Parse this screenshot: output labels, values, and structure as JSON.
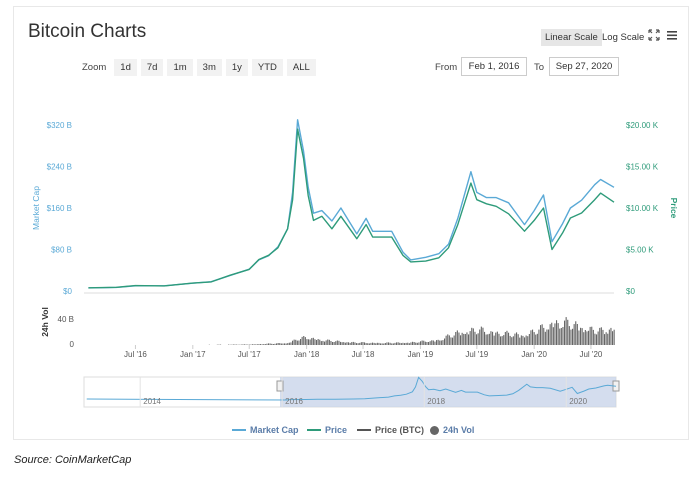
{
  "title": "Bitcoin Charts",
  "scale_buttons": {
    "linear": "Linear Scale",
    "log": "Log Scale"
  },
  "icons": {
    "fullscreen": "fullscreen-icon",
    "menu": "menu-icon"
  },
  "zoom": {
    "label": "Zoom",
    "options": [
      "1d",
      "7d",
      "1m",
      "3m",
      "1y",
      "YTD",
      "ALL"
    ]
  },
  "range": {
    "from_label": "From",
    "from": "Feb 1, 2016",
    "to_label": "To",
    "to": "Sep 27, 2020"
  },
  "source": "Source: CoinMarketCap",
  "colors": {
    "market_cap": "#5aa9d6",
    "price": "#2e9b7a",
    "price_btc": "#555555",
    "vol": "#666666",
    "navigator_fill": "#c9d5ea"
  },
  "chart_data": {
    "type": "line",
    "left_axis": {
      "label": "Market Cap",
      "ticks": [
        "$0",
        "$80 B",
        "$160 B",
        "$240 B",
        "$320 B"
      ],
      "values": [
        0,
        80,
        160,
        240,
        320
      ],
      "unit": "B USD"
    },
    "right_axis": {
      "label": "Price",
      "ticks": [
        "$0",
        "$5.00 K",
        "$10.00 K",
        "$15.00 K",
        "$20.00 K"
      ],
      "values": [
        0,
        5000,
        10000,
        15000,
        20000
      ]
    },
    "volume_axis": {
      "label": "24h Vol",
      "ticks": [
        "0",
        "40 B"
      ]
    },
    "x_ticks": [
      "Jul '16",
      "Jan '17",
      "Jul '17",
      "Jan '18",
      "Jul '18",
      "Jan '19",
      "Jul '19",
      "Jan '20",
      "Jul '20"
    ],
    "x_tick_dates": [
      "2016-07",
      "2017-01",
      "2017-07",
      "2018-01",
      "2018-07",
      "2019-01",
      "2019-07",
      "2020-01",
      "2020-07"
    ],
    "navigator_ticks": [
      "2014",
      "2016",
      "2018",
      "2020"
    ],
    "legend": [
      "Market Cap",
      "Price",
      "Price (BTC)",
      "24h Vol"
    ],
    "series": [
      {
        "name": "Market Cap",
        "unit": "B USD",
        "dates": [
          "2016-02",
          "2016-05",
          "2016-07",
          "2016-10",
          "2017-01",
          "2017-03",
          "2017-05",
          "2017-07",
          "2017-08",
          "2017-09",
          "2017-10",
          "2017-11",
          "2017-12-01",
          "2017-12-17",
          "2018-01-05",
          "2018-01-20",
          "2018-02-06",
          "2018-03-05",
          "2018-04-06",
          "2018-05-05",
          "2018-06-25",
          "2018-07-25",
          "2018-08-15",
          "2018-09-15",
          "2018-10-15",
          "2018-11-20",
          "2018-12-15",
          "2019-02-01",
          "2019-03-15",
          "2019-04-15",
          "2019-05-15",
          "2019-06-26",
          "2019-07-15",
          "2019-08-15",
          "2019-09-15",
          "2019-10-25",
          "2019-12-15",
          "2020-01-15",
          "2020-02-14",
          "2020-03-12",
          "2020-04-15",
          "2020-05-10",
          "2020-06-15",
          "2020-07-27",
          "2020-08-15",
          "2020-09-27"
        ],
        "values": [
          6,
          7,
          10,
          10,
          15,
          18,
          30,
          42,
          60,
          68,
          85,
          120,
          190,
          330,
          270,
          200,
          150,
          155,
          135,
          160,
          110,
          140,
          115,
          115,
          115,
          75,
          60,
          65,
          72,
          90,
          140,
          230,
          190,
          180,
          180,
          170,
          128,
          155,
          185,
          95,
          130,
          160,
          175,
          205,
          215,
          200
        ]
      },
      {
        "name": "Price",
        "unit": "USD",
        "dates": [
          "2016-02",
          "2016-05",
          "2016-07",
          "2016-10",
          "2017-01",
          "2017-03",
          "2017-05",
          "2017-07",
          "2017-08",
          "2017-09",
          "2017-10",
          "2017-11",
          "2017-12-01",
          "2017-12-17",
          "2018-01-05",
          "2018-01-20",
          "2018-02-06",
          "2018-03-05",
          "2018-04-06",
          "2018-05-05",
          "2018-06-25",
          "2018-07-25",
          "2018-08-15",
          "2018-09-15",
          "2018-10-15",
          "2018-11-20",
          "2018-12-15",
          "2019-02-01",
          "2019-03-15",
          "2019-04-15",
          "2019-05-15",
          "2019-06-26",
          "2019-07-15",
          "2019-08-15",
          "2019-09-15",
          "2019-10-25",
          "2019-12-15",
          "2020-01-15",
          "2020-02-14",
          "2020-03-12",
          "2020-04-15",
          "2020-05-10",
          "2020-06-15",
          "2020-07-27",
          "2020-08-15",
          "2020-09-27"
        ],
        "values": [
          380,
          450,
          650,
          620,
          950,
          1100,
          1900,
          2600,
          3800,
          4300,
          5200,
          7500,
          11000,
          19500,
          16000,
          11500,
          8500,
          9000,
          7500,
          9000,
          6300,
          8000,
          6500,
          6500,
          6500,
          4300,
          3500,
          3600,
          4000,
          5200,
          8000,
          13000,
          11000,
          10500,
          10200,
          9300,
          7200,
          8500,
          10000,
          5000,
          7000,
          8800,
          9400,
          11000,
          11800,
          10700
        ]
      },
      {
        "name": "24h Vol",
        "unit": "B USD",
        "dates": [
          "2016-02",
          "2016-07",
          "2017-01",
          "2017-07",
          "2017-11",
          "2017-12",
          "2018-01",
          "2018-03",
          "2018-06",
          "2018-09",
          "2018-12",
          "2019-03",
          "2019-05",
          "2019-07",
          "2019-10",
          "2019-12",
          "2020-02",
          "2020-03",
          "2020-05",
          "2020-07",
          "2020-08",
          "2020-09"
        ],
        "values": [
          0.1,
          0.1,
          0.3,
          1,
          4,
          12,
          15,
          9,
          5,
          4,
          5,
          10,
          25,
          30,
          22,
          20,
          35,
          45,
          42,
          30,
          28,
          33
        ]
      }
    ],
    "grid": false,
    "legend_placement": "bottom"
  }
}
